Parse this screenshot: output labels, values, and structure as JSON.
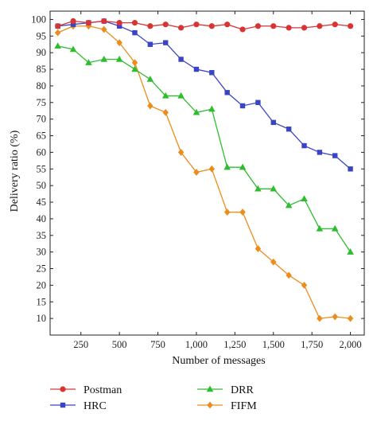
{
  "chart_data": {
    "type": "line",
    "xlabel": "Number of messages",
    "ylabel": "Delivery ratio (%)",
    "xlim": [
      50,
      2090
    ],
    "ylim": [
      5,
      102.5
    ],
    "xticks": [
      250,
      500,
      750,
      1000,
      1250,
      1500,
      1750,
      2000
    ],
    "xtick_labels": [
      "250",
      "500",
      "750",
      "1,000",
      "1,250",
      "1,500",
      "1,750",
      "2,000"
    ],
    "yticks": [
      10,
      15,
      20,
      25,
      30,
      35,
      40,
      45,
      50,
      55,
      60,
      65,
      70,
      75,
      80,
      85,
      90,
      95,
      100
    ],
    "ytick_labels": [
      "10",
      "15",
      "20",
      "25",
      "30",
      "35",
      "40",
      "45",
      "50",
      "55",
      "60",
      "65",
      "70",
      "75",
      "80",
      "85",
      "90",
      "95",
      "100"
    ],
    "grid": false,
    "legend_position": "bottom",
    "x": [
      100,
      200,
      300,
      400,
      500,
      600,
      700,
      800,
      900,
      1000,
      1100,
      1200,
      1300,
      1400,
      1500,
      1600,
      1700,
      1800,
      1900,
      2000
    ],
    "series": [
      {
        "name": "Postman",
        "color": "#d93434",
        "marker": "circle",
        "values": [
          98,
          99.5,
          99,
          99.5,
          99,
          99,
          98,
          98.5,
          97.5,
          98.5,
          98,
          98.5,
          97,
          98,
          98,
          97.5,
          97.5,
          98,
          98.5,
          98
        ]
      },
      {
        "name": "HRC",
        "color": "#3a45c4",
        "marker": "square",
        "values": [
          98,
          98.5,
          99,
          99.5,
          98,
          96,
          92.5,
          93,
          88,
          85,
          84,
          78,
          74,
          75,
          69,
          67,
          62,
          60,
          59,
          55
        ]
      },
      {
        "name": "DRR",
        "color": "#2ebd2e",
        "marker": "triangle",
        "values": [
          92,
          91,
          87,
          88,
          88,
          85,
          82,
          77,
          77,
          72,
          73,
          55.5,
          55.5,
          49,
          49,
          44,
          46,
          37,
          37,
          30
        ]
      },
      {
        "name": "FIFM",
        "color": "#ec8c1c",
        "marker": "diamond",
        "values": [
          96,
          98,
          98,
          97,
          93,
          87,
          74,
          72,
          60,
          54,
          55,
          42,
          42,
          31,
          27,
          23,
          20,
          10,
          10.5,
          10
        ]
      }
    ]
  }
}
